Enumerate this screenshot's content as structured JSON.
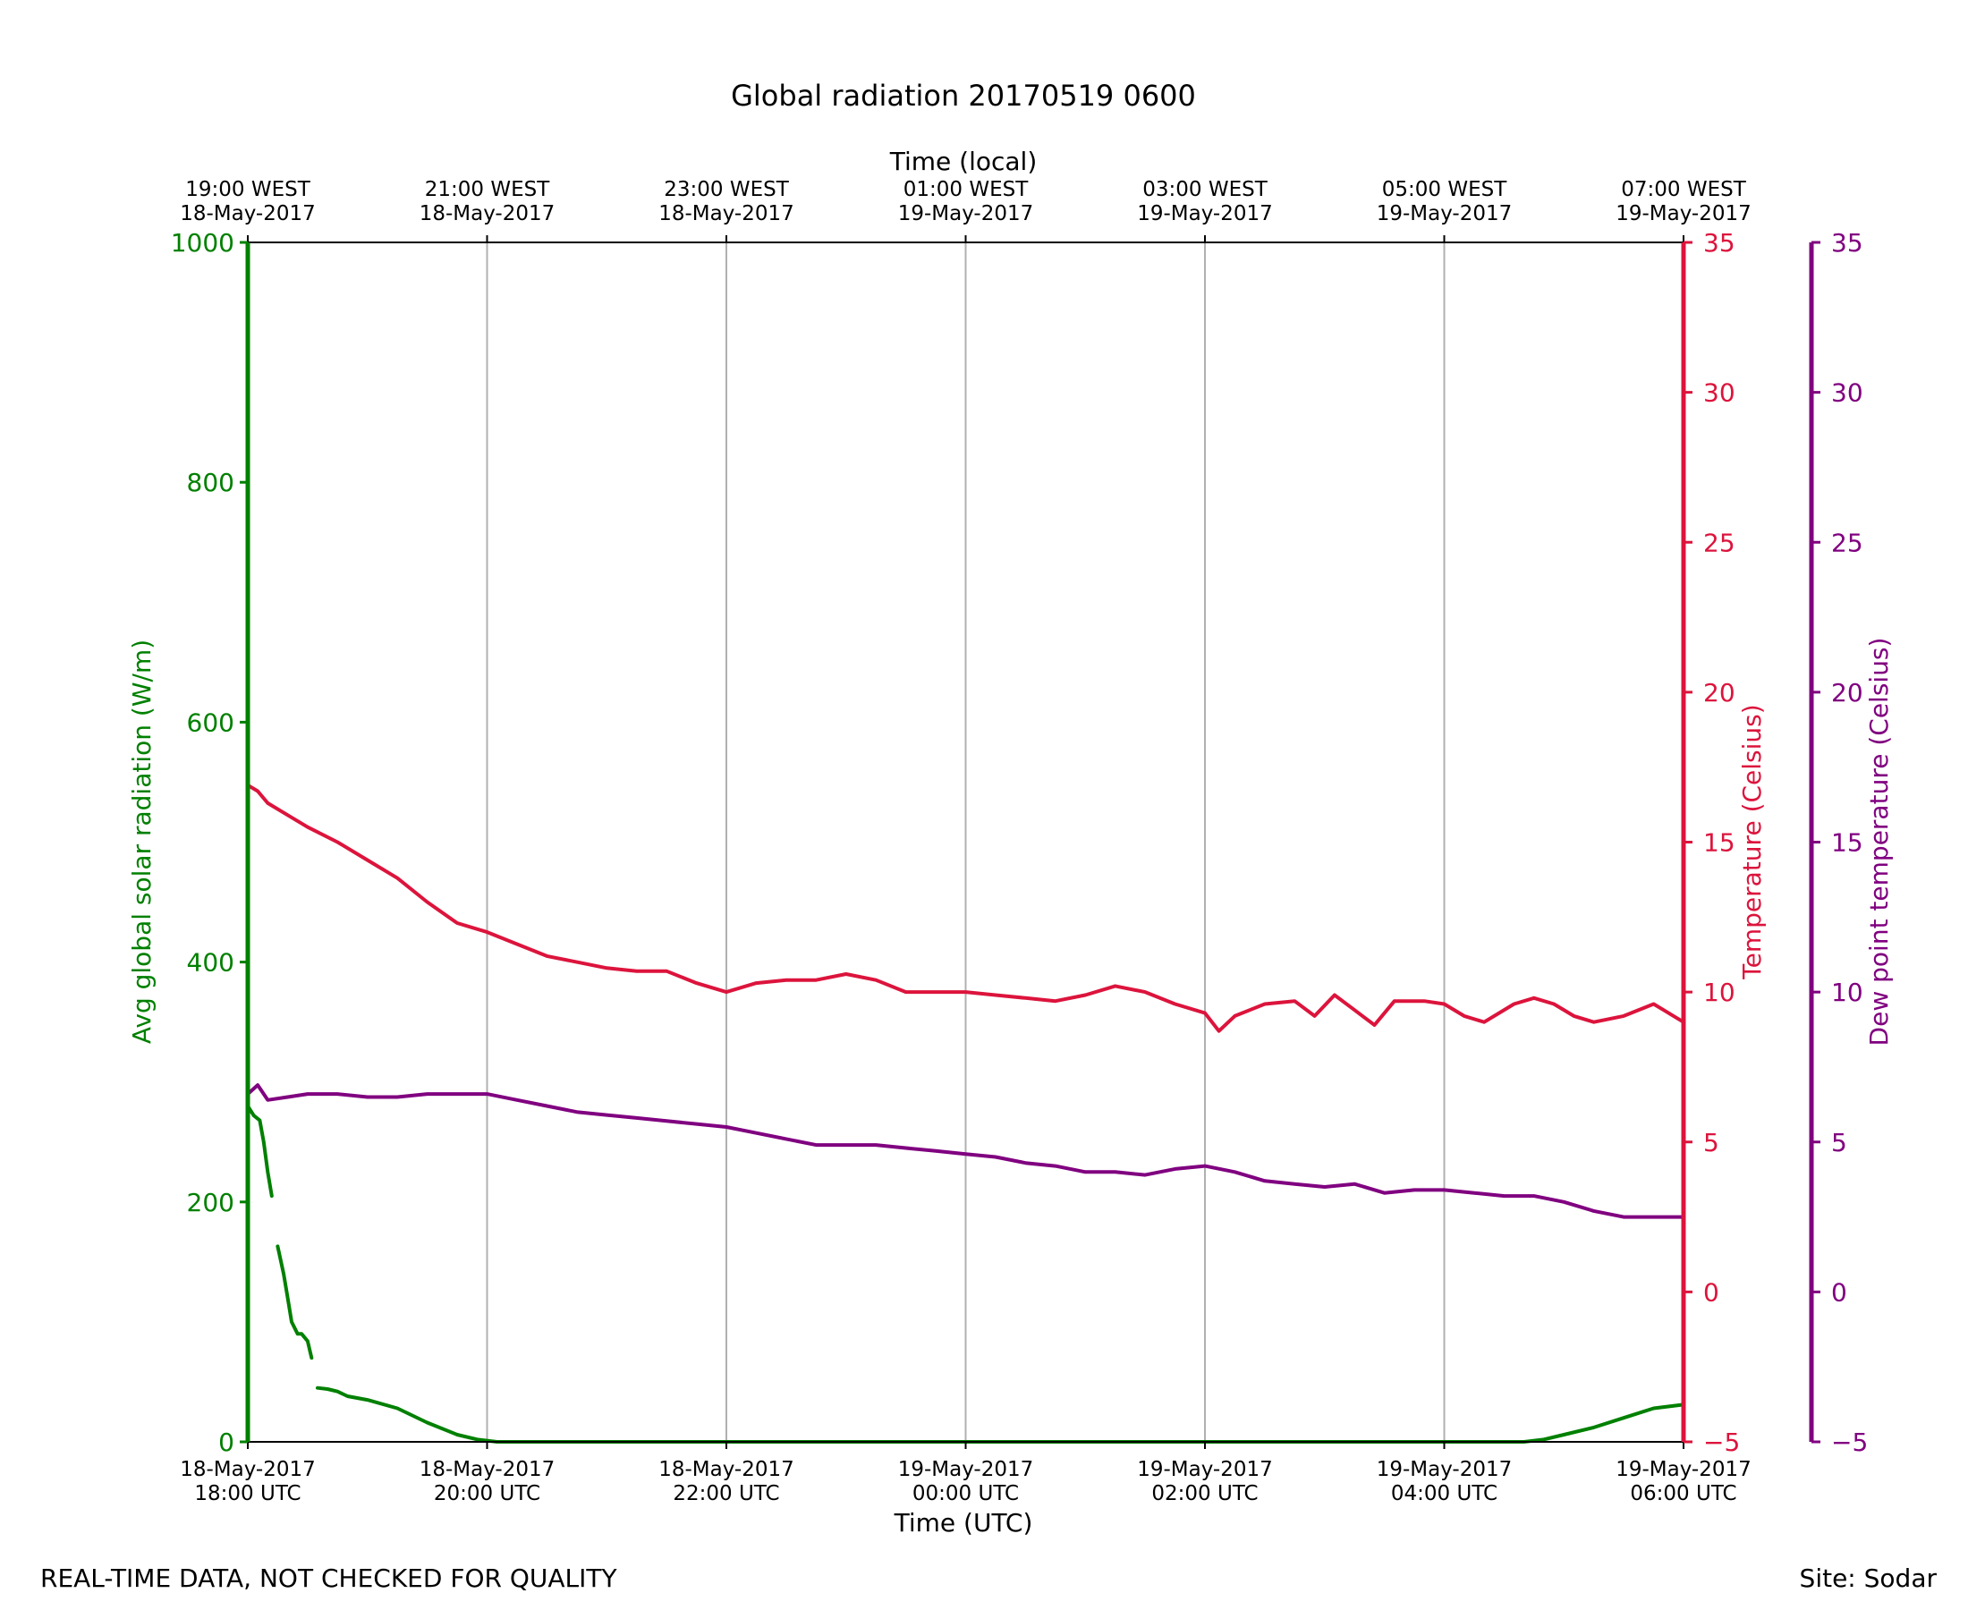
{
  "chart_data": {
    "type": "line",
    "title": "Global radiation 20170519 0600",
    "xlabel": "Time (UTC)",
    "xlabel_top": "Time (local)",
    "xlim": [
      "2017-05-18 18:00",
      "2017-05-19 06:00"
    ],
    "x_ticks_bottom": [
      {
        "date": "18-May-2017",
        "time": "18:00 UTC"
      },
      {
        "date": "18-May-2017",
        "time": "20:00 UTC"
      },
      {
        "date": "18-May-2017",
        "time": "22:00 UTC"
      },
      {
        "date": "19-May-2017",
        "time": "00:00 UTC"
      },
      {
        "date": "19-May-2017",
        "time": "02:00 UTC"
      },
      {
        "date": "19-May-2017",
        "time": "04:00 UTC"
      },
      {
        "date": "19-May-2017",
        "time": "06:00 UTC"
      }
    ],
    "x_ticks_top": [
      {
        "time": "19:00 WEST",
        "date": "18-May-2017"
      },
      {
        "time": "21:00 WEST",
        "date": "18-May-2017"
      },
      {
        "time": "23:00 WEST",
        "date": "18-May-2017"
      },
      {
        "time": "01:00 WEST",
        "date": "19-May-2017"
      },
      {
        "time": "03:00 WEST",
        "date": "19-May-2017"
      },
      {
        "time": "05:00 WEST",
        "date": "19-May-2017"
      },
      {
        "time": "07:00 WEST",
        "date": "19-May-2017"
      }
    ],
    "grid": "vertical",
    "axes": {
      "left": {
        "label": "Avg global solar radiation (W/m)",
        "ylim": [
          0,
          1000
        ],
        "ticks": [
          0,
          200,
          400,
          600,
          800,
          1000
        ],
        "color": "#008000"
      },
      "right1": {
        "label": "Temperature (Celsius)",
        "ylim": [
          -5,
          35
        ],
        "ticks": [
          -5,
          0,
          5,
          10,
          15,
          20,
          25,
          30,
          35
        ],
        "color": "#dc143c"
      },
      "right2": {
        "label": "Dew point temperature (Celsius)",
        "ylim": [
          -5,
          35
        ],
        "ticks": [
          -5,
          0,
          5,
          10,
          15,
          20,
          25,
          30,
          35
        ],
        "color": "#800080"
      }
    },
    "series": [
      {
        "axis": "left",
        "color": "#008000",
        "x": [
          "2017-05-18 18:00",
          "2017-05-18 18:03",
          "2017-05-18 18:06",
          "2017-05-18 18:08",
          "2017-05-18 18:10",
          "2017-05-18 18:12",
          "null",
          "2017-05-18 18:15",
          "2017-05-18 18:18",
          "2017-05-18 18:20",
          "2017-05-18 18:22",
          "2017-05-18 18:25",
          "2017-05-18 18:27",
          "2017-05-18 18:30",
          "2017-05-18 18:32",
          "null",
          "2017-05-18 18:35",
          "2017-05-18 18:40",
          "2017-05-18 18:45",
          "2017-05-18 18:50",
          "2017-05-18 19:00",
          "2017-05-18 19:15",
          "2017-05-18 19:30",
          "2017-05-18 19:45",
          "2017-05-18 19:55",
          "2017-05-18 20:05",
          "2017-05-18 20:20",
          "2017-05-19 04:40",
          "2017-05-19 04:50",
          "2017-05-19 05:00",
          "2017-05-19 05:15",
          "2017-05-19 05:30",
          "2017-05-19 05:45",
          "2017-05-19 06:00"
        ],
        "values": [
          280,
          272,
          268,
          250,
          225,
          205,
          null,
          163,
          140,
          120,
          100,
          90,
          90,
          84,
          70,
          null,
          45,
          44,
          42,
          38,
          35,
          28,
          16,
          6,
          2,
          0,
          0,
          0,
          2,
          6,
          12,
          20,
          28,
          31
        ]
      },
      {
        "axis": "right1",
        "color": "#dc143c",
        "x": [
          "2017-05-18 18:00",
          "2017-05-18 18:05",
          "2017-05-18 18:10",
          "2017-05-18 18:20",
          "2017-05-18 18:30",
          "2017-05-18 18:45",
          "2017-05-18 19:00",
          "2017-05-18 19:15",
          "2017-05-18 19:30",
          "2017-05-18 19:45",
          "2017-05-18 20:00",
          "2017-05-18 20:15",
          "2017-05-18 20:30",
          "2017-05-18 20:45",
          "2017-05-18 21:00",
          "2017-05-18 21:15",
          "2017-05-18 21:30",
          "2017-05-18 21:45",
          "2017-05-18 22:00",
          "2017-05-18 22:15",
          "2017-05-18 22:30",
          "2017-05-18 22:45",
          "2017-05-18 23:00",
          "2017-05-18 23:15",
          "2017-05-18 23:30",
          "2017-05-18 23:45",
          "2017-05-19 00:00",
          "2017-05-19 00:15",
          "2017-05-19 00:30",
          "2017-05-19 00:45",
          "2017-05-19 01:00",
          "2017-05-19 01:15",
          "2017-05-19 01:30",
          "2017-05-19 01:45",
          "2017-05-19 02:00",
          "2017-05-19 02:07",
          "2017-05-19 02:15",
          "2017-05-19 02:30",
          "2017-05-19 02:45",
          "2017-05-19 02:55",
          "2017-05-19 03:05",
          "2017-05-19 03:15",
          "2017-05-19 03:25",
          "2017-05-19 03:35",
          "2017-05-19 03:50",
          "2017-05-19 04:00",
          "2017-05-19 04:10",
          "2017-05-19 04:20",
          "2017-05-19 04:35",
          "2017-05-19 04:45",
          "2017-05-19 04:55",
          "2017-05-19 05:05",
          "2017-05-19 05:15",
          "2017-05-19 05:30",
          "2017-05-19 05:45",
          "2017-05-19 05:50",
          "2017-05-19 06:00"
        ],
        "values": [
          16.9,
          16.7,
          16.3,
          15.9,
          15.5,
          15.0,
          14.4,
          13.8,
          13.0,
          12.3,
          12.0,
          11.6,
          11.2,
          11.0,
          10.8,
          10.7,
          10.7,
          10.3,
          10.0,
          10.3,
          10.4,
          10.4,
          10.6,
          10.4,
          10.0,
          10.0,
          10.0,
          9.9,
          9.8,
          9.7,
          9.9,
          10.2,
          10.0,
          9.6,
          9.3,
          8.7,
          9.2,
          9.6,
          9.7,
          9.2,
          9.9,
          9.4,
          8.9,
          9.7,
          9.7,
          9.6,
          9.2,
          9.0,
          9.6,
          9.8,
          9.6,
          9.2,
          9.0,
          9.2,
          9.6,
          9.4,
          9.0
        ]
      },
      {
        "axis": "right2",
        "color": "#800080",
        "x": [
          "2017-05-18 18:00",
          "2017-05-18 18:05",
          "2017-05-18 18:10",
          "2017-05-18 18:20",
          "2017-05-18 18:30",
          "2017-05-18 18:45",
          "2017-05-18 19:00",
          "2017-05-18 19:15",
          "2017-05-18 19:30",
          "2017-05-18 19:45",
          "2017-05-18 20:00",
          "2017-05-18 20:15",
          "2017-05-18 20:30",
          "2017-05-18 20:45",
          "2017-05-18 21:00",
          "2017-05-18 21:15",
          "2017-05-18 21:30",
          "2017-05-18 21:45",
          "2017-05-18 22:00",
          "2017-05-18 22:15",
          "2017-05-18 22:30",
          "2017-05-18 22:45",
          "2017-05-18 23:00",
          "2017-05-18 23:15",
          "2017-05-18 23:30",
          "2017-05-18 23:45",
          "2017-05-19 00:00",
          "2017-05-19 00:15",
          "2017-05-19 00:30",
          "2017-05-19 00:45",
          "2017-05-19 01:00",
          "2017-05-19 01:15",
          "2017-05-19 01:30",
          "2017-05-19 01:45",
          "2017-05-19 02:00",
          "2017-05-19 02:15",
          "2017-05-19 02:30",
          "2017-05-19 02:45",
          "2017-05-19 03:00",
          "2017-05-19 03:15",
          "2017-05-19 03:30",
          "2017-05-19 03:45",
          "2017-05-19 04:00",
          "2017-05-19 04:15",
          "2017-05-19 04:30",
          "2017-05-19 04:45",
          "2017-05-19 05:00",
          "2017-05-19 05:15",
          "2017-05-19 05:30",
          "2017-05-19 05:45",
          "2017-05-19 06:00"
        ],
        "values": [
          6.6,
          6.9,
          6.4,
          6.5,
          6.6,
          6.6,
          6.5,
          6.5,
          6.6,
          6.6,
          6.6,
          6.4,
          6.2,
          6.0,
          5.9,
          5.8,
          5.7,
          5.6,
          5.5,
          5.3,
          5.1,
          4.9,
          4.9,
          4.9,
          4.8,
          4.7,
          4.6,
          4.5,
          4.3,
          4.2,
          4.0,
          4.0,
          3.9,
          4.1,
          4.2,
          4.0,
          3.7,
          3.6,
          3.5,
          3.6,
          3.3,
          3.4,
          3.4,
          3.3,
          3.2,
          3.2,
          3.0,
          2.7,
          2.5,
          2.5,
          2.5
        ]
      }
    ]
  },
  "footer": {
    "left": "REAL-TIME DATA, NOT CHECKED FOR QUALITY",
    "right": "Site: Sodar"
  }
}
